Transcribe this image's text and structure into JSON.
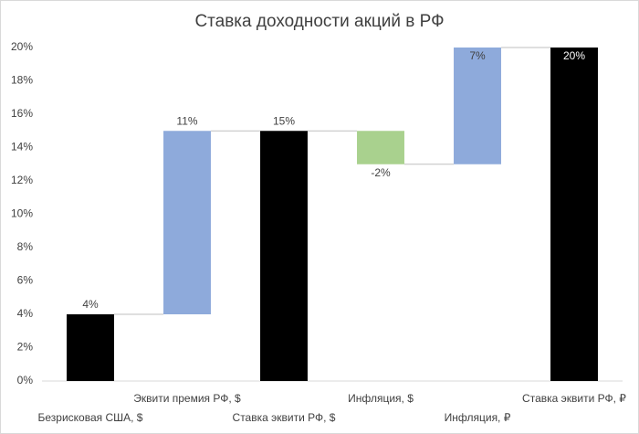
{
  "chart_data": {
    "type": "waterfall",
    "title": "Ставка доходности акций в РФ",
    "categories": [
      "Безрисковая США, $",
      "Эквити премия РФ, $",
      "Ставка эквити РФ, $",
      "Инфляция, $",
      "Инфляция, ₽",
      "Ставка эквити РФ, ₽"
    ],
    "values": [
      4,
      11,
      15,
      -2,
      7,
      20
    ],
    "value_labels": [
      "4%",
      "11%",
      "15%",
      "-2%",
      "7%",
      "20%"
    ],
    "measures": [
      "absolute",
      "relative",
      "total",
      "relative",
      "relative",
      "total"
    ],
    "colors": [
      "#000000",
      "#8eaadb",
      "#000000",
      "#a9d18e",
      "#8eaadb",
      "#000000"
    ],
    "ylim": [
      0,
      20
    ],
    "yticks": [
      {
        "value": 0,
        "label": "0%"
      },
      {
        "value": 2,
        "label": "2%"
      },
      {
        "value": 4,
        "label": "4%"
      },
      {
        "value": 6,
        "label": "6%"
      },
      {
        "value": 8,
        "label": "8%"
      },
      {
        "value": 10,
        "label": "10%"
      },
      {
        "value": 12,
        "label": "12%"
      },
      {
        "value": 14,
        "label": "14%"
      },
      {
        "value": 16,
        "label": "16%"
      },
      {
        "value": 18,
        "label": "18%"
      },
      {
        "value": 20,
        "label": "20%"
      }
    ],
    "grid": false
  }
}
